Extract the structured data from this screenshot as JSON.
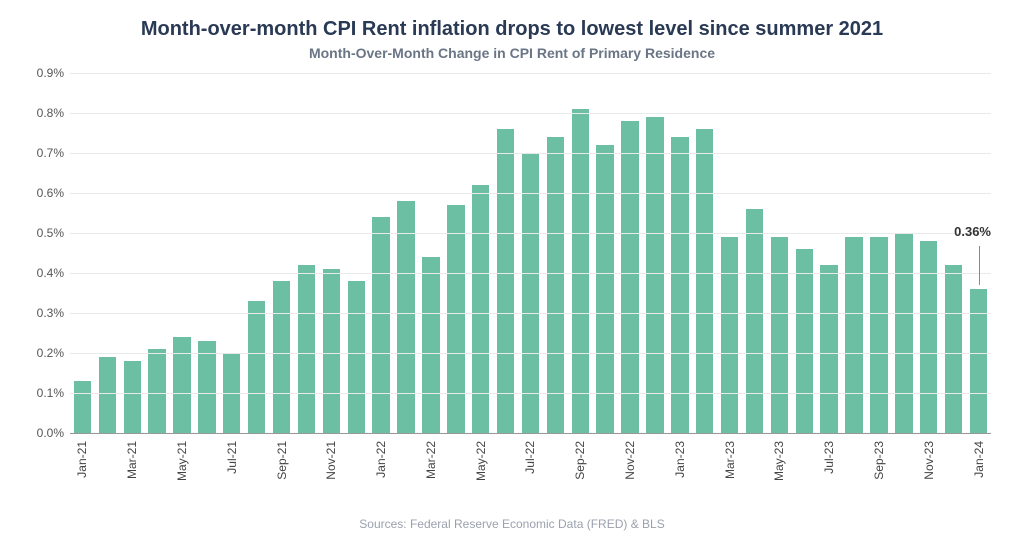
{
  "title": "Month-over-month CPI Rent inflation drops to lowest level since summer 2021",
  "subtitle": "Month-Over-Month Change in CPI Rent of Primary Residence",
  "source": "Sources: Federal Reserve Economic Data (FRED) & BLS",
  "chart": {
    "type": "bar",
    "bar_color": "#6dbfa4",
    "background_color": "#ffffff",
    "grid_color": "#e8e9eb",
    "baseline_color": "#999999",
    "title_color": "#2a3a55",
    "subtitle_color": "#6a7585",
    "text_color": "#444444",
    "title_fontsize": 20,
    "subtitle_fontsize": 14,
    "axis_fontsize": 12,
    "bar_width_ratio": 0.7,
    "ylim": [
      0.0,
      0.9
    ],
    "ytick_step": 0.1,
    "y_format": "percent_one_decimal",
    "x_label_step": 2,
    "callout": {
      "label": "0.36%",
      "index": 36,
      "value": 0.36
    },
    "categories": [
      "Jan-21",
      "Feb-21",
      "Mar-21",
      "Apr-21",
      "May-21",
      "Jun-21",
      "Jul-21",
      "Aug-21",
      "Sep-21",
      "Oct-21",
      "Nov-21",
      "Dec-21",
      "Jan-22",
      "Feb-22",
      "Mar-22",
      "Apr-22",
      "May-22",
      "Jun-22",
      "Jul-22",
      "Aug-22",
      "Sep-22",
      "Oct-22",
      "Nov-22",
      "Dec-22",
      "Jan-23",
      "Feb-23",
      "Mar-23",
      "Apr-23",
      "May-23",
      "Jun-23",
      "Jul-23",
      "Aug-23",
      "Sep-23",
      "Oct-23",
      "Nov-23",
      "Dec-23",
      "Jan-24"
    ],
    "values": [
      0.13,
      0.19,
      0.18,
      0.21,
      0.24,
      0.23,
      0.2,
      0.33,
      0.38,
      0.42,
      0.41,
      0.38,
      0.54,
      0.58,
      0.44,
      0.57,
      0.62,
      0.76,
      0.7,
      0.74,
      0.81,
      0.72,
      0.78,
      0.79,
      0.74,
      0.76,
      0.49,
      0.56,
      0.49,
      0.46,
      0.42,
      0.49,
      0.49,
      0.5,
      0.48,
      0.42,
      0.36
    ]
  }
}
